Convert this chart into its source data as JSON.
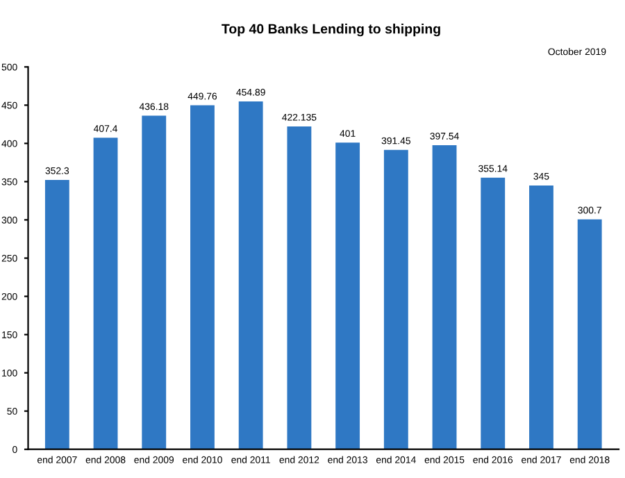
{
  "chart_data": {
    "type": "bar",
    "title": "Top 40 Banks Lending to shipping",
    "annotations": [
      "October 2019"
    ],
    "categories": [
      "end 2007",
      "end 2008",
      "end 2009",
      "end 2010",
      "end 2011",
      "end 2012",
      "end 2013",
      "end 2014",
      "end 2015",
      "end 2016",
      "end 2017",
      "end 2018"
    ],
    "values": [
      352.3,
      407.4,
      436.18,
      449.76,
      454.89,
      422.135,
      401,
      391.45,
      397.54,
      355.14,
      345,
      300.7
    ],
    "color": "#2f78c4",
    "ylim": [
      0,
      500
    ],
    "yticks": [
      0,
      50,
      100,
      150,
      200,
      250,
      300,
      350,
      400,
      450,
      500
    ],
    "data_labels": true,
    "grid": false
  }
}
